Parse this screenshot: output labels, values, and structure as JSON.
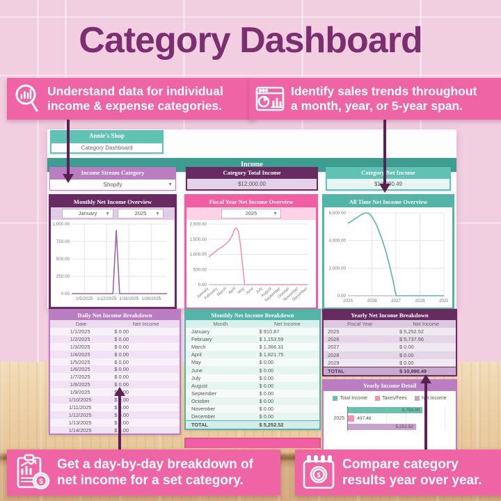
{
  "title": "Category Dashboard",
  "callouts": {
    "top_left": {
      "icon": "magnifier-chart-icon",
      "line1": "Understand data for individual",
      "line2": "income & expense categories."
    },
    "top_right": {
      "icon": "browser-chart-icon",
      "line1": "Identify sales trends throughout",
      "line2": "a month, year, or 5-year span."
    },
    "bottom_left": {
      "icon": "clipboard-chart-coin-icon",
      "line1": "Get a day-by-day breakdown of",
      "line2": "net income for a set category."
    },
    "bottom_right": {
      "icon": "calendar-coin-icon",
      "line1": "Compare category",
      "line2": "results year over year."
    }
  },
  "sheet": {
    "shop_name": "Annie's Shop",
    "page_name": "Category Dashboard",
    "section_header": "Income",
    "summary_cards": [
      {
        "title": "Income Stream Category",
        "value": "Shopify",
        "type": "dropdown"
      },
      {
        "title": "Category Total Income",
        "value": "$12,000.00"
      },
      {
        "title": "Category Net Income",
        "value": "$10,990.49"
      }
    ],
    "monthly_controls": {
      "month": "January",
      "year": "2025"
    },
    "fiscal_control": {
      "year": "2025"
    }
  },
  "colors": {
    "wall_pink": "#f2cee1",
    "callout_pink": "#ef64a4",
    "arrow_purple": "#5b2154",
    "title_purple": "#7b2f70",
    "teal": "#52b5a7",
    "teal_light": "#5fc2b3",
    "teal_bar": "#3d9d90",
    "dark_purple": "#682b61",
    "orchid": "#ba7dc2",
    "hot_pink": "#f15fa2"
  },
  "chart_data": [
    {
      "id": "monthly",
      "type": "line",
      "title": "Monthly Net Income Overview",
      "color": "#9c63a7",
      "ylim": [
        0,
        1000
      ],
      "grid": true,
      "note": "net income spikes to 910.87 mid-January, otherwise 0",
      "yticks": [
        {
          "v": 0,
          "label": "0.00"
        },
        {
          "v": 250,
          "label": "250.00"
        },
        {
          "v": 500,
          "label": "500.00"
        },
        {
          "v": 750,
          "label": "750.00"
        },
        {
          "v": 1000,
          "label": "1,000.00"
        }
      ],
      "xticks": [
        {
          "f": 0.1333,
          "label": "1/5/2025"
        },
        {
          "f": 0.3667,
          "label": "1/12/2025"
        },
        {
          "f": 0.6,
          "label": "1/19/2025"
        },
        {
          "f": 0.8333,
          "label": "1/26/2025"
        }
      ],
      "vgrid": [
        0.1333,
        0.3667,
        0.6,
        0.8333
      ],
      "points": [
        [
          0,
          0
        ],
        [
          0.433,
          0
        ],
        [
          0.468,
          910.87
        ],
        [
          0.503,
          0
        ],
        [
          1,
          0
        ]
      ]
    },
    {
      "id": "fiscal",
      "type": "line",
      "title": "Fiscal Year Net Income Overview",
      "color": "#f48fb8",
      "ylim": [
        0,
        2000
      ],
      "grid": true,
      "rotate_xticks": true,
      "categories": [
        "January",
        "February",
        "March",
        "April",
        "May",
        "June",
        "July",
        "August",
        "September",
        "October",
        "November",
        "December"
      ],
      "values": [
        910.87,
        1153.59,
        1366.31,
        1821.75,
        0,
        0,
        0,
        0,
        0,
        0,
        0,
        0
      ],
      "yticks": [
        {
          "v": 0,
          "label": "0.00"
        },
        {
          "v": 500,
          "label": "500.00"
        },
        {
          "v": 1000,
          "label": "1,000.00"
        },
        {
          "v": 1500,
          "label": "1,500.00"
        },
        {
          "v": 2000,
          "label": "2,000.00"
        }
      ],
      "xticks": [
        {
          "f": 0,
          "label": "January"
        },
        {
          "f": 0.0909,
          "label": "February"
        },
        {
          "f": 0.1818,
          "label": "March"
        },
        {
          "f": 0.2727,
          "label": "April"
        },
        {
          "f": 0.3636,
          "label": "May"
        },
        {
          "f": 0.4545,
          "label": "June"
        },
        {
          "f": 0.5455,
          "label": "July"
        },
        {
          "f": 0.6364,
          "label": "August"
        },
        {
          "f": 0.7273,
          "label": "September"
        },
        {
          "f": 0.8182,
          "label": "October"
        },
        {
          "f": 0.9091,
          "label": "November"
        },
        {
          "f": 1,
          "label": "December"
        }
      ],
      "vgrid": [],
      "points": [
        [
          0,
          910.87
        ],
        [
          0.045,
          1030
        ],
        [
          0.0909,
          1153.59
        ],
        [
          0.136,
          1250
        ],
        [
          0.1818,
          1366.31
        ],
        [
          0.21,
          1460
        ],
        [
          0.24,
          1640
        ],
        [
          0.262,
          1830
        ],
        [
          0.28,
          1872
        ],
        [
          0.3,
          1760
        ],
        [
          0.32,
          1350
        ],
        [
          0.345,
          550
        ],
        [
          0.3636,
          0
        ],
        [
          1,
          0
        ]
      ]
    },
    {
      "id": "alltime",
      "type": "line",
      "title": "All Time Net Income Overview",
      "color": "#56b7a7",
      "ylim": [
        0,
        6000
      ],
      "grid": true,
      "categories": [
        "2025",
        "2026",
        "2027",
        "2028",
        "2029"
      ],
      "values": [
        5252.52,
        5737.96,
        0,
        0,
        0
      ],
      "yticks": [
        {
          "v": 0,
          "label": "0.00"
        },
        {
          "v": 2000,
          "label": "2,000.00"
        },
        {
          "v": 4000,
          "label": "4,000.00"
        },
        {
          "v": 6000,
          "label": "6,000.00"
        }
      ],
      "xticks": [
        {
          "f": 0,
          "label": "2025"
        },
        {
          "f": 0.25,
          "label": "2026"
        },
        {
          "f": 0.5,
          "label": "2027"
        },
        {
          "f": 0.75,
          "label": "2028"
        },
        {
          "f": 1,
          "label": "2029"
        }
      ],
      "vgrid": [
        0.25,
        0.5,
        0.75,
        1
      ],
      "points": [
        [
          0,
          5252
        ],
        [
          0.05,
          5450
        ],
        [
          0.1,
          5700
        ],
        [
          0.15,
          5920
        ],
        [
          0.19,
          6000
        ],
        [
          0.22,
          5960
        ],
        [
          0.25,
          5737.96
        ],
        [
          0.3,
          5100
        ],
        [
          0.35,
          4200
        ],
        [
          0.4,
          3100
        ],
        [
          0.44,
          2000
        ],
        [
          0.47,
          1100
        ],
        [
          0.49,
          350
        ],
        [
          0.505,
          0
        ],
        [
          1,
          0
        ]
      ]
    },
    {
      "id": "yearly_detail",
      "type": "bar",
      "title": "Yearly Income Detail",
      "orientation": "horizontal",
      "categories": [
        "2025"
      ],
      "xmax": 6000,
      "legend_position": "top",
      "series": [
        {
          "name": "Total Income",
          "value": 5750.0,
          "label": "5,750.00",
          "color": "#6cc0ae"
        },
        {
          "name": "Taxes/Fees",
          "value": 497.48,
          "label": "497.48",
          "color": "#f48fb5"
        },
        {
          "name": "Net Income",
          "value": 5252.52,
          "label": "5,252.52",
          "color": "#c9a2d0"
        }
      ]
    }
  ],
  "tables": {
    "daily": {
      "title": "Daily Net Income Breakdown",
      "columns": [
        "Date",
        "Net Income"
      ],
      "rows": [
        [
          "1/1/2025",
          "$ 0.00"
        ],
        [
          "1/2/2025",
          "$ 0.00"
        ],
        [
          "1/3/2025",
          "$ 0.00"
        ],
        [
          "1/4/2025",
          "$ 0.00"
        ],
        [
          "1/5/2025",
          "$ 0.00"
        ],
        [
          "1/6/2025",
          "$ 0.00"
        ],
        [
          "1/7/2025",
          "$ 0.00"
        ],
        [
          "1/8/2025",
          "$ 0.00"
        ],
        [
          "1/9/2025",
          "$ 0.00"
        ],
        [
          "1/10/2025",
          "$ 0.00"
        ],
        [
          "1/11/2025",
          "$ 0.00"
        ],
        [
          "1/12/2025",
          "$ 0.00"
        ],
        [
          "1/13/2025",
          "$ 0.00"
        ],
        [
          "1/14/2025",
          "$ 0.00"
        ]
      ]
    },
    "monthly": {
      "title": "Monthly Net Income Breakdown",
      "columns": [
        "Month",
        "Net Income"
      ],
      "rows": [
        [
          "January",
          "$ 910.87"
        ],
        [
          "February",
          "$ 1,153.59"
        ],
        [
          "March",
          "$ 1,366.31"
        ],
        [
          "April",
          "$ 1,821.75"
        ],
        [
          "May",
          "$ 0.00"
        ],
        [
          "June",
          "$ 0.00"
        ],
        [
          "July",
          "$ 0.00"
        ],
        [
          "August",
          "$ 0.00"
        ],
        [
          "September",
          "$ 0.00"
        ],
        [
          "October",
          "$ 0.00"
        ],
        [
          "November",
          "$ 0.00"
        ],
        [
          "December",
          "$ 0.00"
        ],
        [
          "TOTAL",
          "$ 5,252.52"
        ]
      ]
    },
    "yearly": {
      "title": "Yearly Net Income Breakdown",
      "columns": [
        "Fiscal Year",
        "Net Income"
      ],
      "rows": [
        [
          "2025",
          "$ 5,252.52"
        ],
        [
          "2026",
          "$ 5,737.96"
        ],
        [
          "2027",
          "$ 0.00"
        ],
        [
          "2028",
          "$ 0.00"
        ],
        [
          "2029",
          "$ 0.00"
        ],
        [
          "TOTAL",
          "$ 10,990.49"
        ]
      ]
    }
  }
}
